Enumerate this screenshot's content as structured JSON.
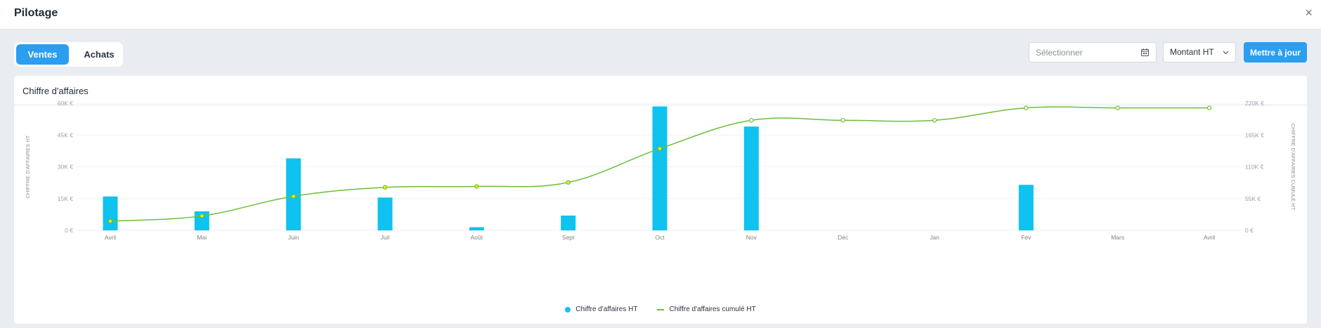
{
  "header": {
    "title": "Pilotage",
    "close_label": "×"
  },
  "tabs": [
    {
      "label": "Ventes",
      "active": true
    },
    {
      "label": "Achats",
      "active": false
    }
  ],
  "filters": {
    "date_placeholder": "Sélectionner",
    "date_icon": "calendar-icon",
    "measure_value": "Montant HT",
    "update_label": "Mettre à jour"
  },
  "colors": {
    "accent": "#2c9ef0",
    "bar": "#0fc2ef",
    "line": "#6bbf3a",
    "marker_fill": "#ffea00"
  },
  "panel": {
    "title": "Chiffre d'affaires"
  },
  "chart_data": {
    "type": "bar",
    "title": "Chiffre d'affaires",
    "categories": [
      "Avril",
      "Mai",
      "Juin",
      "Juil",
      "Août",
      "Sept",
      "Oct",
      "Nov",
      "Déc",
      "Jan",
      "Fév",
      "Mars",
      "Avril"
    ],
    "series": [
      {
        "name": "Chiffre d'affaires HT",
        "type": "bar",
        "axis": "left",
        "values": [
          16000,
          9000,
          34000,
          15500,
          1500,
          7000,
          58500,
          49000,
          0,
          0,
          21500,
          0,
          0
        ]
      },
      {
        "name": "Chiffre d'affaires cumulé HT",
        "type": "line",
        "axis": "right",
        "values": [
          16000,
          25000,
          59000,
          74500,
          76000,
          83000,
          141500,
          190500,
          190500,
          190500,
          212000,
          212000,
          212000
        ]
      }
    ],
    "ylabel": "CHIFFRE D'AFFAIRES HT",
    "ylabel_right": "CHIFFRE D'AFFAIRES CUMULÉ HT",
    "ylim": [
      0,
      60000
    ],
    "ylim_right": [
      0,
      220000
    ],
    "yticks": [
      "0 €",
      "15K €",
      "30K €",
      "45K €",
      "60K €"
    ],
    "yticks_right": [
      "0 €",
      "55K €",
      "110K €",
      "165K €",
      "220K €"
    ],
    "grid": true,
    "legend": "bottom-center"
  }
}
